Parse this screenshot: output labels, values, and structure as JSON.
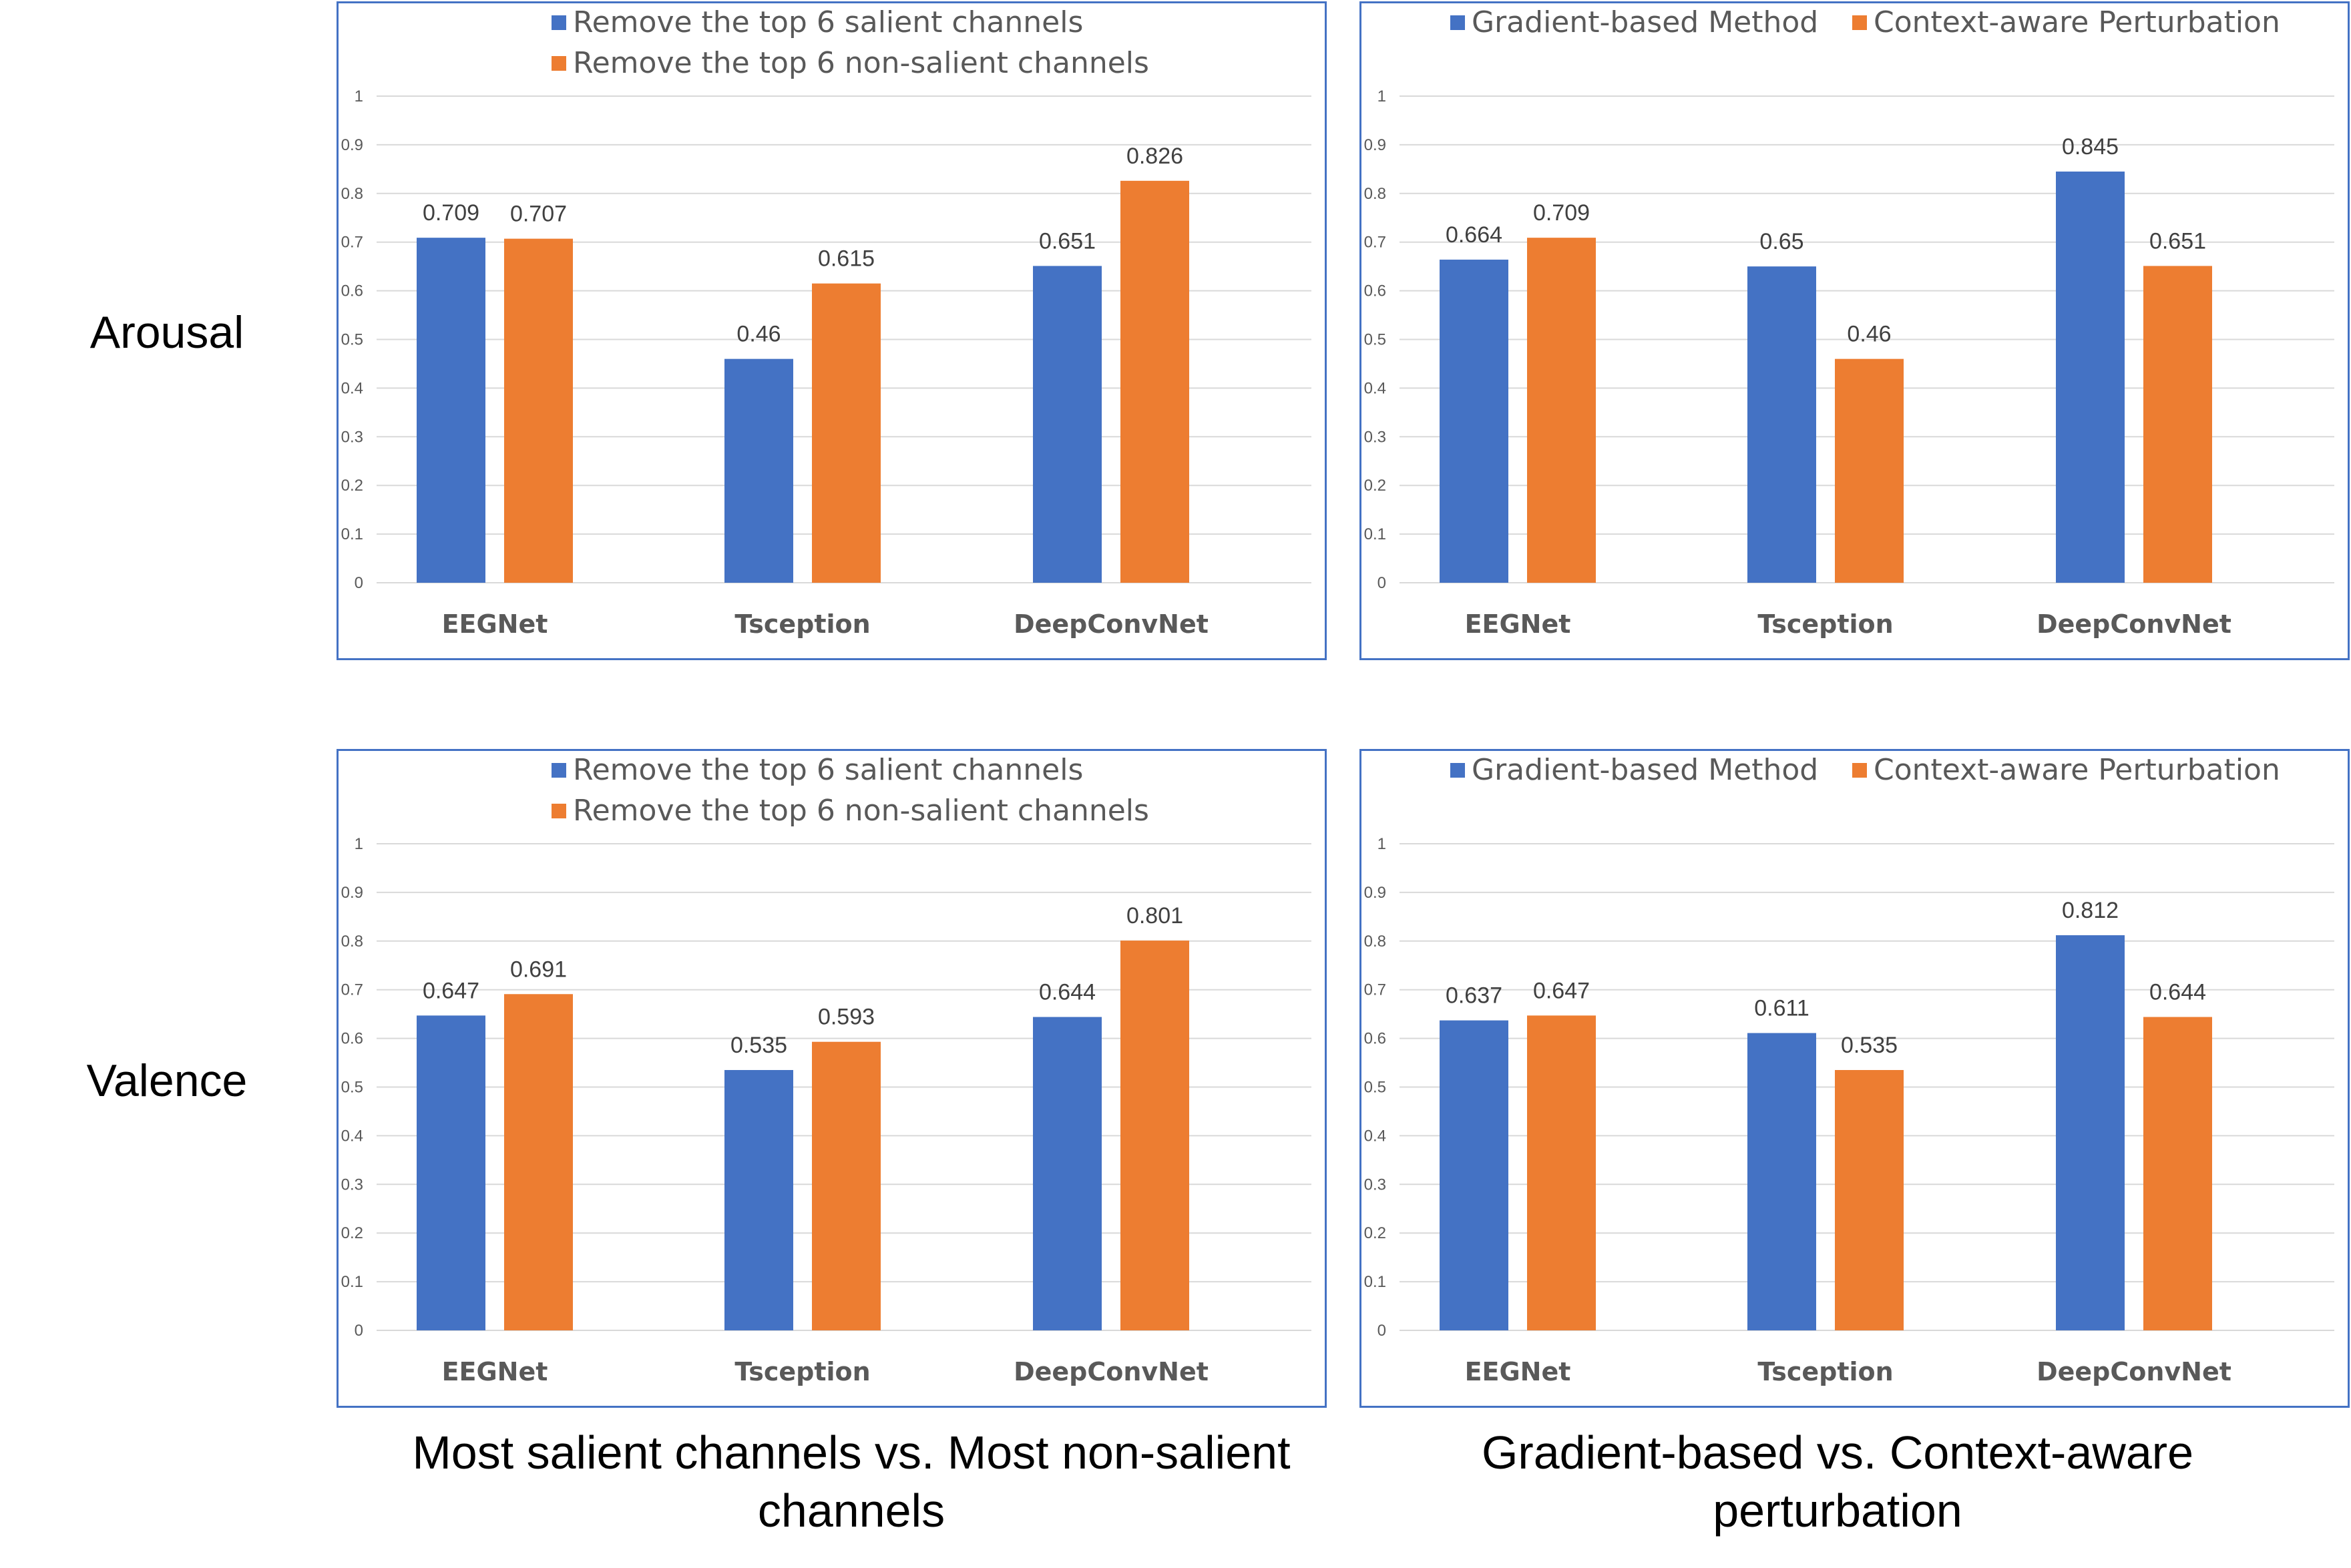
{
  "row_labels": [
    "Arousal",
    "Valence"
  ],
  "captions": [
    [
      "Most salient channels vs. Most non-salient",
      "channels"
    ],
    [
      "Gradient-based vs. Context-aware",
      "perturbation"
    ]
  ],
  "colors": {
    "series1": "#4472c4",
    "series2": "#ed7d31",
    "grid": "#d9d9d9",
    "frame": "#4472c4",
    "text": "#595959"
  },
  "chart_data": [
    {
      "type": "bar",
      "row": "Arousal",
      "column": "Most salient channels vs. Most non-salient channels",
      "categories": [
        "EEGNet",
        "Tsception",
        "DeepConvNet"
      ],
      "series": [
        {
          "name": "Remove the top 6 salient channels",
          "values": [
            0.709,
            0.46,
            0.651
          ],
          "labels": [
            "0.709",
            "0.46",
            "0.651"
          ]
        },
        {
          "name": "Remove the top 6 non-salient channels",
          "values": [
            0.707,
            0.615,
            0.826
          ],
          "labels": [
            "0.707",
            "0.615",
            "0.826"
          ]
        }
      ],
      "legend_layout": "stacked",
      "yticks": [
        "0",
        "0.1",
        "0.2",
        "0.3",
        "0.4",
        "0.5",
        "0.6",
        "0.7",
        "0.8",
        "0.9",
        "1"
      ],
      "ylim": [
        0,
        1
      ]
    },
    {
      "type": "bar",
      "row": "Arousal",
      "column": "Gradient-based vs. Context-aware perturbation",
      "categories": [
        "EEGNet",
        "Tsception",
        "DeepConvNet"
      ],
      "series": [
        {
          "name": "Gradient-based Method",
          "values": [
            0.664,
            0.65,
            0.845
          ],
          "labels": [
            "0.664",
            "0.65",
            "0.845"
          ]
        },
        {
          "name": "Context-aware Perturbation",
          "values": [
            0.709,
            0.46,
            0.651
          ],
          "labels": [
            "0.709",
            "0.46",
            "0.651"
          ]
        }
      ],
      "legend_layout": "inline",
      "yticks": [
        "0",
        "0.1",
        "0.2",
        "0.3",
        "0.4",
        "0.5",
        "0.6",
        "0.7",
        "0.8",
        "0.9",
        "1"
      ],
      "ylim": [
        0,
        1
      ]
    },
    {
      "type": "bar",
      "row": "Valence",
      "column": "Most salient channels vs. Most non-salient channels",
      "categories": [
        "EEGNet",
        "Tsception",
        "DeepConvNet"
      ],
      "series": [
        {
          "name": "Remove the top 6 salient channels",
          "values": [
            0.647,
            0.535,
            0.644
          ],
          "labels": [
            "0.647",
            "0.535",
            "0.644"
          ]
        },
        {
          "name": "Remove the top 6 non-salient channels",
          "values": [
            0.691,
            0.593,
            0.801
          ],
          "labels": [
            "0.691",
            "0.593",
            "0.801"
          ]
        }
      ],
      "legend_layout": "stacked",
      "yticks": [
        "0",
        "0.1",
        "0.2",
        "0.3",
        "0.4",
        "0.5",
        "0.6",
        "0.7",
        "0.8",
        "0.9",
        "1"
      ],
      "ylim": [
        0,
        1
      ]
    },
    {
      "type": "bar",
      "row": "Valence",
      "column": "Gradient-based vs. Context-aware perturbation",
      "categories": [
        "EEGNet",
        "Tsception",
        "DeepConvNet"
      ],
      "series": [
        {
          "name": "Gradient-based Method",
          "values": [
            0.637,
            0.611,
            0.812
          ],
          "labels": [
            "0.637",
            "0.611",
            "0.812"
          ]
        },
        {
          "name": "Context-aware Perturbation",
          "values": [
            0.647,
            0.535,
            0.644
          ],
          "labels": [
            "0.647",
            "0.535",
            "0.644"
          ]
        }
      ],
      "legend_layout": "inline",
      "yticks": [
        "0",
        "0.1",
        "0.2",
        "0.3",
        "0.4",
        "0.5",
        "0.6",
        "0.7",
        "0.8",
        "0.9",
        "1"
      ],
      "ylim": [
        0,
        1
      ]
    }
  ]
}
